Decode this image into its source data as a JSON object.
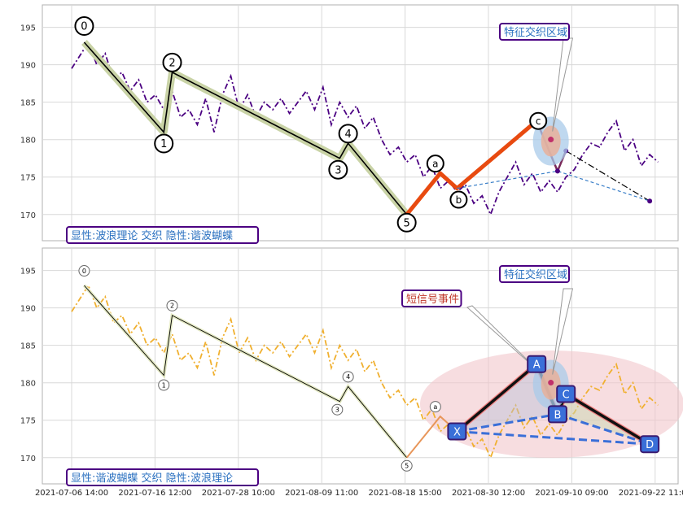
{
  "chart_data": [
    {
      "type": "line",
      "panel": "top",
      "ylim": [
        166.5,
        198
      ],
      "yticks": [
        170,
        175,
        180,
        185,
        190,
        195
      ],
      "x_dates": [
        "2021-07-06 14:00",
        "2021-07-16 12:00",
        "2021-07-28 10:00",
        "2021-08-09 11:00",
        "2021-08-18 15:00",
        "2021-08-30 12:00",
        "2021-09-10 09:00",
        "2021-09-22 11:00"
      ],
      "caption": "显性:波浪理论 交织 隐性:谐波蝴蝶",
      "callout": "特征交织区域",
      "price_series": [
        [
          0,
          189.5
        ],
        [
          2,
          193
        ],
        [
          3,
          190
        ],
        [
          4,
          191.5
        ],
        [
          5,
          188
        ],
        [
          6,
          189
        ],
        [
          7,
          186.5
        ],
        [
          8,
          188
        ],
        [
          9,
          185
        ],
        [
          10,
          186
        ],
        [
          11,
          184
        ],
        [
          12,
          186.5
        ],
        [
          13,
          183
        ],
        [
          14,
          184
        ],
        [
          15,
          182
        ],
        [
          16,
          185.5
        ],
        [
          17,
          181
        ],
        [
          18,
          186
        ],
        [
          19,
          188.5
        ],
        [
          20,
          184
        ],
        [
          21,
          186
        ],
        [
          22,
          183
        ],
        [
          23,
          185
        ],
        [
          24,
          184
        ],
        [
          25,
          185.5
        ],
        [
          26,
          183.5
        ],
        [
          27,
          185
        ],
        [
          28,
          186.5
        ],
        [
          29,
          184
        ],
        [
          30,
          187
        ],
        [
          31,
          182
        ],
        [
          32,
          185
        ],
        [
          33,
          183
        ],
        [
          34,
          184.5
        ],
        [
          35,
          181.5
        ],
        [
          36,
          183
        ],
        [
          37,
          180
        ],
        [
          38,
          178
        ],
        [
          39,
          179
        ],
        [
          40,
          177
        ],
        [
          41,
          178
        ],
        [
          42,
          175
        ],
        [
          43,
          176.5
        ],
        [
          44,
          173.5
        ],
        [
          45,
          174.5
        ],
        [
          46,
          173
        ],
        [
          47,
          174
        ],
        [
          48,
          171.5
        ],
        [
          49,
          172.5
        ],
        [
          50,
          170
        ],
        [
          51,
          173
        ],
        [
          52,
          175
        ],
        [
          53,
          177
        ],
        [
          54,
          174
        ],
        [
          55,
          175.5
        ],
        [
          56,
          173
        ],
        [
          57,
          174.5
        ],
        [
          58,
          173
        ],
        [
          59,
          175
        ],
        [
          60,
          176
        ],
        [
          61,
          178
        ],
        [
          62,
          179.5
        ],
        [
          63,
          179
        ],
        [
          64,
          181
        ],
        [
          65,
          182.5
        ],
        [
          66,
          178.5
        ],
        [
          67,
          180
        ],
        [
          68,
          176.5
        ],
        [
          69,
          178
        ],
        [
          70,
          177
        ]
      ],
      "wave_points": [
        {
          "label": "0",
          "x": 1.5,
          "y": 193
        },
        {
          "label": "1",
          "x": 11,
          "y": 181
        },
        {
          "label": "2",
          "x": 12,
          "y": 189
        },
        {
          "label": "3",
          "x": 32,
          "y": 177.5
        },
        {
          "label": "4",
          "x": 33,
          "y": 179.5
        },
        {
          "label": "5",
          "x": 40,
          "y": 170
        }
      ],
      "abc_points": [
        {
          "label": "a",
          "x": 44,
          "y": 175.5
        },
        {
          "label": "b",
          "x": 46,
          "y": 173.5
        },
        {
          "label": "c",
          "x": 55.5,
          "y": 182.5
        }
      ],
      "forecast_points": [
        [
          55.5,
          182.5
        ],
        [
          58,
          175.8
        ],
        [
          59,
          178.5
        ],
        [
          69,
          171.8
        ]
      ]
    },
    {
      "type": "line",
      "panel": "bottom",
      "ylim": [
        166.5,
        198
      ],
      "yticks": [
        170,
        175,
        180,
        185,
        190,
        195
      ],
      "x_dates": [
        "2021-07-06 14:00",
        "2021-07-16 12:00",
        "2021-07-28 10:00",
        "2021-08-09 11:00",
        "2021-08-18 15:00",
        "2021-08-30 12:00",
        "2021-09-10 09:00",
        "2021-09-22 11:00"
      ],
      "caption": "显性:谐波蝴蝶 交织 隐性:波浪理论",
      "callout": "特征交织区域",
      "signal_callout": "短信号事件",
      "wave_labels": [
        "0",
        "1",
        "2",
        "3",
        "4",
        "5",
        "a"
      ],
      "harmonic_points": [
        {
          "label": "X",
          "x": 46,
          "y": 173.5
        },
        {
          "label": "A",
          "x": 55.5,
          "y": 182.5
        },
        {
          "label": "B",
          "x": 58,
          "y": 175.8
        },
        {
          "label": "C",
          "x": 59,
          "y": 178.5
        },
        {
          "label": "D",
          "x": 69,
          "y": 171.8
        }
      ]
    }
  ],
  "colors": {
    "price_top": "#4b0082",
    "price_bottom": "#f0b030",
    "wave_highlight": "#c9d3a6",
    "impulse_orange": "#e84a10",
    "harmonic_blue": "#3a6fd8",
    "ellipse_pink": "#f2c6cb",
    "caption_border": "#4b0082",
    "caption_text": "#2a70c0",
    "signal_text": "#c0392b",
    "grid": "#d8d8d8"
  }
}
